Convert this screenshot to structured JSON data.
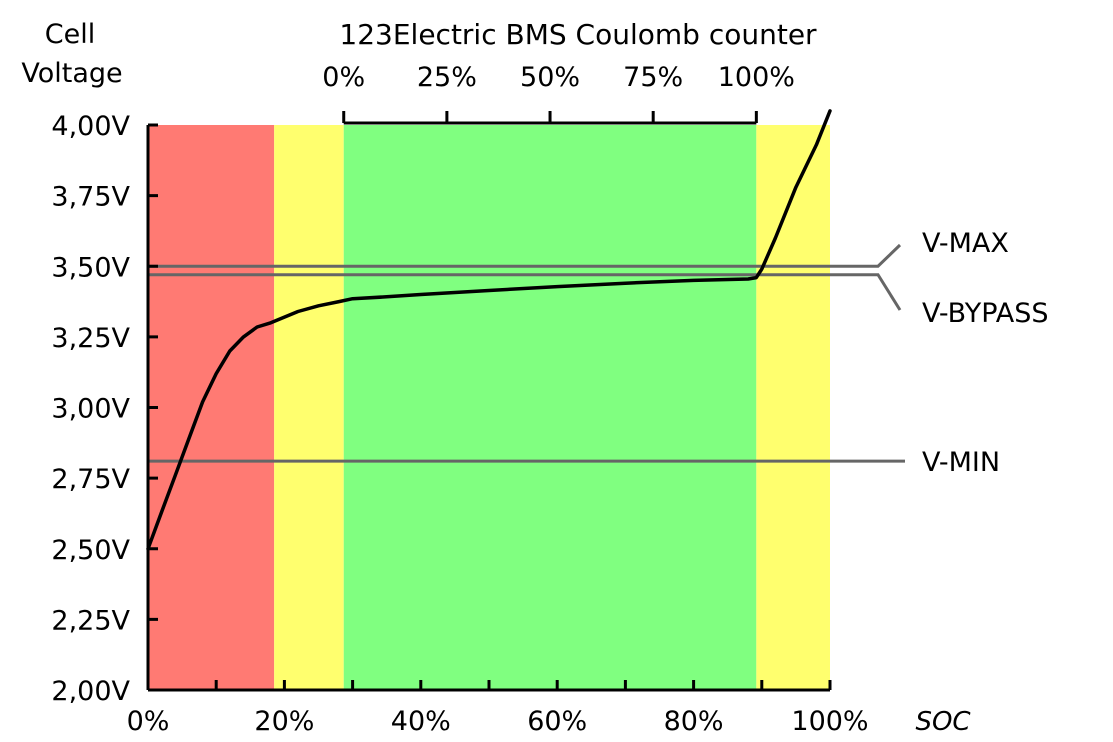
{
  "chart_data": {
    "type": "line",
    "title": "123Electric BMS Coulomb counter",
    "ylabel_line1": "Cell",
    "ylabel_line2": "Voltage",
    "xlabel": "SOC",
    "x_unit": "%",
    "xlim": [
      0,
      100
    ],
    "ylim": [
      2.0,
      4.0
    ],
    "x_ticks": [
      0,
      10,
      20,
      30,
      40,
      50,
      60,
      70,
      80,
      90,
      100
    ],
    "x_tick_labels": [
      {
        "x": 0,
        "label": "0%"
      },
      {
        "x": 20,
        "label": "20%"
      },
      {
        "x": 40,
        "label": "40%"
      },
      {
        "x": 60,
        "label": "60%"
      },
      {
        "x": 80,
        "label": "80%"
      },
      {
        "x": 100,
        "label": "100%"
      }
    ],
    "y_ticks": [
      {
        "y": 2.0,
        "label": "2,00V"
      },
      {
        "y": 2.25,
        "label": "2,25V"
      },
      {
        "y": 2.5,
        "label": "2,50V"
      },
      {
        "y": 2.75,
        "label": "2,75V"
      },
      {
        "y": 3.0,
        "label": "3,00V"
      },
      {
        "y": 3.25,
        "label": "3,25V"
      },
      {
        "y": 3.5,
        "label": "3,50V"
      },
      {
        "y": 3.75,
        "label": "3,75V"
      },
      {
        "y": 4.0,
        "label": "4,00V"
      }
    ],
    "zones": [
      {
        "from": 0,
        "to": 18.5,
        "color": "#ff7a73"
      },
      {
        "from": 18.5,
        "to": 28.7,
        "color": "#ffff6e"
      },
      {
        "from": 28.7,
        "to": 89.2,
        "color": "#80ff80"
      },
      {
        "from": 89.2,
        "to": 100,
        "color": "#ffff6e"
      }
    ],
    "curve": {
      "color": "#000000",
      "points": [
        [
          0,
          2.5
        ],
        [
          2,
          2.63
        ],
        [
          4,
          2.76
        ],
        [
          6,
          2.89
        ],
        [
          8,
          3.02
        ],
        [
          10,
          3.12
        ],
        [
          12,
          3.2
        ],
        [
          14,
          3.25
        ],
        [
          16,
          3.285
        ],
        [
          18,
          3.3
        ],
        [
          20,
          3.32
        ],
        [
          22,
          3.34
        ],
        [
          25,
          3.36
        ],
        [
          28,
          3.375
        ],
        [
          30,
          3.385
        ],
        [
          35,
          3.392
        ],
        [
          40,
          3.4
        ],
        [
          50,
          3.414
        ],
        [
          60,
          3.428
        ],
        [
          70,
          3.44
        ],
        [
          80,
          3.45
        ],
        [
          88,
          3.455
        ],
        [
          89.2,
          3.46
        ],
        [
          90,
          3.49
        ],
        [
          92,
          3.6
        ],
        [
          95,
          3.78
        ],
        [
          98,
          3.93
        ],
        [
          100,
          4.05
        ]
      ]
    },
    "reference_lines": [
      {
        "name": "V-MAX",
        "y": 3.5
      },
      {
        "name": "V-BYPASS",
        "y": 3.47
      },
      {
        "name": "V-MIN",
        "y": 2.81
      }
    ],
    "coulomb_counter": {
      "from_soc": 28.7,
      "to_soc": 89.2,
      "ticks": [
        0,
        25,
        50,
        75,
        100
      ],
      "tick_labels": [
        "0%",
        "25%",
        "50%",
        "75%",
        "100%"
      ]
    },
    "colors": {
      "red_zone": "#ff7a73",
      "yellow_zone": "#ffff6e",
      "green_zone": "#80ff80",
      "reference_line": "#666666",
      "axis": "#000000"
    }
  }
}
